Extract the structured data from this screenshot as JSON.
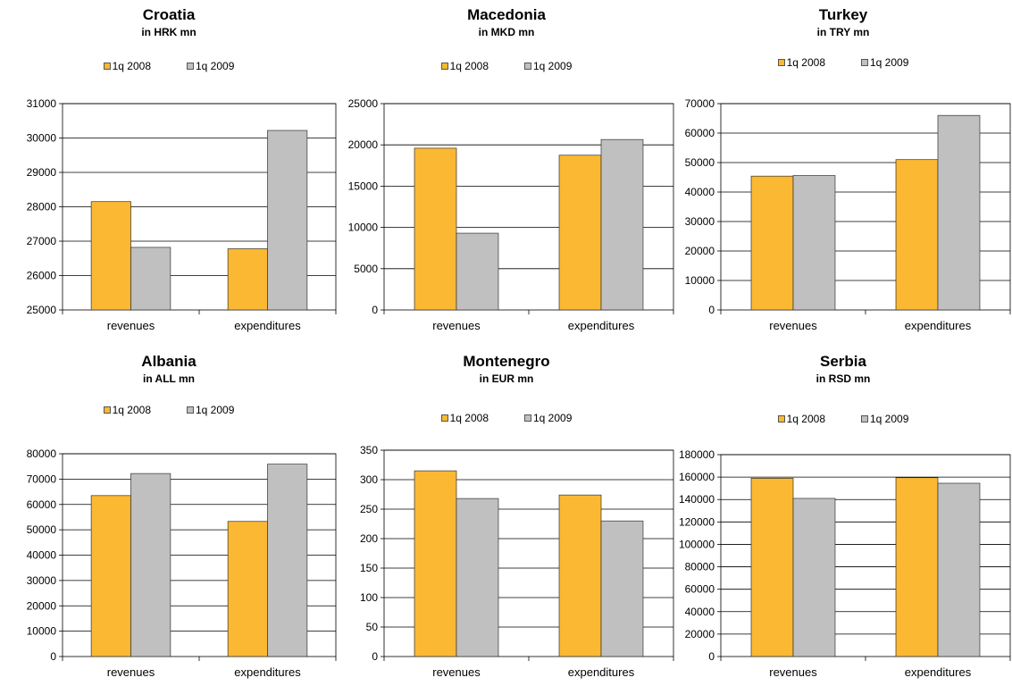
{
  "colors": {
    "series_2008": "#FBB832",
    "series_2009": "#C0C0C0"
  },
  "chart_data": [
    {
      "type": "bar",
      "title": "Croatia",
      "subtitle": "in HRK mn",
      "categories": [
        "revenues",
        "expenditures"
      ],
      "series": [
        {
          "name": "1q 2008",
          "values": [
            28150,
            26780
          ]
        },
        {
          "name": "1q 2009",
          "values": [
            26820,
            30220
          ]
        }
      ],
      "ylim": [
        25000,
        31000
      ],
      "yticks": [
        "25000",
        "26000",
        "27000",
        "28000",
        "29000",
        "30000",
        "31000"
      ],
      "grid": true,
      "legend": "top"
    },
    {
      "type": "bar",
      "title": "Macedonia",
      "subtitle": "in MKD mn",
      "categories": [
        "revenues",
        "expenditures"
      ],
      "series": [
        {
          "name": "1q 2008",
          "values": [
            19600,
            18750
          ]
        },
        {
          "name": "1q 2009",
          "values": [
            9300,
            20650
          ]
        }
      ],
      "ylim": [
        0,
        25000
      ],
      "yticks": [
        "0",
        "5000",
        "10000",
        "15000",
        "20000",
        "25000"
      ],
      "grid": true,
      "legend": "top"
    },
    {
      "type": "bar",
      "title": "Turkey",
      "subtitle": "in TRY mn",
      "categories": [
        "revenues",
        "expenditures"
      ],
      "series": [
        {
          "name": "1q 2008",
          "values": [
            45400,
            51000
          ]
        },
        {
          "name": "1q 2009",
          "values": [
            45600,
            66000
          ]
        }
      ],
      "ylim": [
        0,
        70000
      ],
      "yticks": [
        "0",
        "10000",
        "20000",
        "30000",
        "40000",
        "50000",
        "60000",
        "70000"
      ],
      "grid": true,
      "legend": "top"
    },
    {
      "type": "bar",
      "title": "Albania",
      "subtitle": "in ALL mn",
      "categories": [
        "revenues",
        "expenditures"
      ],
      "series": [
        {
          "name": "1q 2008",
          "values": [
            63500,
            53300
          ]
        },
        {
          "name": "1q 2009",
          "values": [
            72200,
            75900
          ]
        }
      ],
      "ylim": [
        0,
        80000
      ],
      "yticks": [
        "0",
        "10000",
        "20000",
        "30000",
        "40000",
        "50000",
        "60000",
        "70000",
        "80000"
      ],
      "grid": true,
      "legend": "top"
    },
    {
      "type": "bar",
      "title": "Montenegro",
      "subtitle": "in EUR mn",
      "categories": [
        "revenues",
        "expenditures"
      ],
      "series": [
        {
          "name": "1q 2008",
          "values": [
            315,
            274
          ]
        },
        {
          "name": "1q 2009",
          "values": [
            268,
            230
          ]
        }
      ],
      "ylim": [
        0,
        350
      ],
      "yticks": [
        "0",
        "50",
        "100",
        "150",
        "200",
        "250",
        "300",
        "350"
      ],
      "grid": true,
      "legend": "top"
    },
    {
      "type": "bar",
      "title": "Serbia",
      "subtitle": "in RSD mn",
      "categories": [
        "revenues",
        "expenditures"
      ],
      "series": [
        {
          "name": "1q 2008",
          "values": [
            159000,
            159500
          ]
        },
        {
          "name": "1q 2009",
          "values": [
            141000,
            154500
          ]
        }
      ],
      "ylim": [
        0,
        180000
      ],
      "yticks": [
        "0",
        "20000",
        "40000",
        "60000",
        "80000",
        "100000",
        "120000",
        "140000",
        "160000",
        "180000"
      ],
      "grid": true,
      "legend": "top"
    }
  ]
}
